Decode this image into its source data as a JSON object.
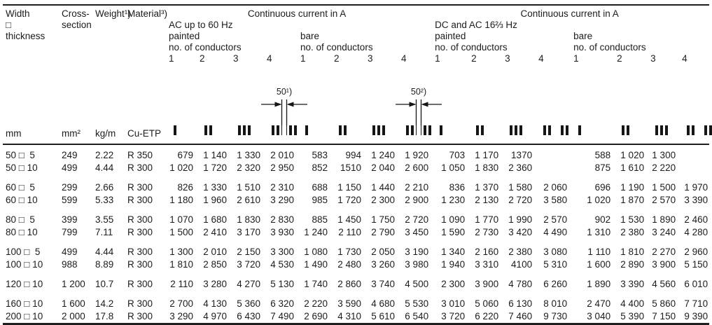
{
  "header": {
    "size": "Width\n□\nthickness",
    "cross_section": "Cross-\nsection",
    "weight": "Weight¹)",
    "material": "Material³)",
    "ac_current_title": "Continuous current in A",
    "dc_current_title": "Continuous current in A",
    "ac_subtitle": "AC up to 60 Hz",
    "dc_subtitle": "DC and AC 16⅔ Hz",
    "painted": "painted",
    "bare": "bare",
    "no_of_conductors": "no. of conductors",
    "conductor_counts": [
      "1",
      "2",
      "3",
      "4"
    ],
    "conductor_icons": [
      "conductor-bars-1",
      "conductor-bars-2",
      "conductor-bars-3",
      "conductor-bars-4"
    ]
  },
  "units_row": {
    "size": "mm",
    "cross_section": "mm²",
    "weight": "kg/m",
    "material": "Cu-ETP"
  },
  "diagram_annotations": {
    "ac_painted_gap": "50¹)",
    "ac_bare_gap": "50²)"
  },
  "column_groups": [
    {
      "id": "ac-painted",
      "annotation": "ac_painted_gap"
    },
    {
      "id": "ac-bare",
      "annotation": "ac_bare_gap"
    },
    {
      "id": "dc-painted"
    },
    {
      "id": "dc-bare"
    }
  ],
  "row_groups": [
    [
      {
        "size": "50 □  5",
        "cross": "249",
        "weight": "2.22",
        "material": "R 350",
        "values": [
          [
            "679",
            "1 140",
            "1 330",
            "2 010"
          ],
          [
            "583",
            "994",
            "1 240",
            "1 920"
          ],
          [
            "703",
            "1 170",
            "1370",
            ""
          ],
          [
            "588",
            "1 020",
            "1 300",
            ""
          ]
        ]
      },
      {
        "size": "50 □ 10",
        "cross": "499",
        "weight": "4.44",
        "material": "R 300",
        "values": [
          [
            "1 020",
            "1 720",
            "2 320",
            "2 950"
          ],
          [
            "852",
            "1510",
            "2 040",
            "2 600"
          ],
          [
            "1 050",
            "1 830",
            "2 360",
            ""
          ],
          [
            "875",
            "1 610",
            "2 220",
            ""
          ]
        ]
      }
    ],
    [
      {
        "size": "60 □  5",
        "cross": "299",
        "weight": "2.66",
        "material": "R 300",
        "values": [
          [
            "826",
            "1 330",
            "1 510",
            "2 310"
          ],
          [
            "688",
            "1 150",
            "1 440",
            "2 210"
          ],
          [
            "836",
            "1 370",
            "1 580",
            "2 060"
          ],
          [
            "696",
            "1 190",
            "1 500",
            "1 970"
          ]
        ]
      },
      {
        "size": "60 □ 10",
        "cross": "599",
        "weight": "5.33",
        "material": "R 300",
        "values": [
          [
            "1 180",
            "1 960",
            "2 610",
            "3 290"
          ],
          [
            "985",
            "1 720",
            "2 300",
            "2 900"
          ],
          [
            "1 230",
            "2 130",
            "2 720",
            "3 580"
          ],
          [
            "1 020",
            "1 870",
            "2 570",
            "3 390"
          ]
        ]
      }
    ],
    [
      {
        "size": "80 □  5",
        "cross": "399",
        "weight": "3.55",
        "material": "R 300",
        "values": [
          [
            "1 070",
            "1 680",
            "1 830",
            "2 830"
          ],
          [
            "885",
            "1 450",
            "1 750",
            "2 720"
          ],
          [
            "1 090",
            "1 770",
            "1 990",
            "2 570"
          ],
          [
            "902",
            "1 530",
            "1 890",
            "2 460"
          ]
        ]
      },
      {
        "size": "80 □ 10",
        "cross": "799",
        "weight": "7.11",
        "material": "R 300",
        "values": [
          [
            "1 500",
            "2 410",
            "3 170",
            "3 930"
          ],
          [
            "1 240",
            "2 110",
            "2 790",
            "3 450"
          ],
          [
            "1 590",
            "2 730",
            "3 420",
            "4 490"
          ],
          [
            "1 310",
            "2 380",
            "3 240",
            "4 280"
          ]
        ]
      }
    ],
    [
      {
        "size": "100 □  5",
        "cross": "499",
        "weight": "4.44",
        "material": "R 300",
        "values": [
          [
            "1 300",
            "2 010",
            "2 150",
            "3 300"
          ],
          [
            "1 080",
            "1 730",
            "2 050",
            "3 190"
          ],
          [
            "1 340",
            "2 160",
            "2 380",
            "3 080"
          ],
          [
            "1 110",
            "1 810",
            "2 270",
            "2 960"
          ]
        ]
      },
      {
        "size": "100 □ 10",
        "cross": "988",
        "weight": "8.89",
        "material": "R 300",
        "values": [
          [
            "1 810",
            "2 850",
            "3 720",
            "4 530"
          ],
          [
            "1 490",
            "2 480",
            "3 260",
            "3 980"
          ],
          [
            "1 940",
            "3 310",
            "4100",
            "5 310"
          ],
          [
            "1 600",
            "2 890",
            "3 900",
            "5 150"
          ]
        ]
      }
    ],
    [
      {
        "size": "120 □ 10",
        "cross": "1 200",
        "weight": "10.7",
        "material": "R 300",
        "values": [
          [
            "2 110",
            "3 280",
            "4 270",
            "5 130"
          ],
          [
            "1 740",
            "2 860",
            "3 740",
            "4 500"
          ],
          [
            "2 300",
            "3 900",
            "4 780",
            "6 260"
          ],
          [
            "1 890",
            "3 390",
            "4 560",
            "6 010"
          ]
        ]
      }
    ],
    [
      {
        "size": "160 □ 10",
        "cross": "1 600",
        "weight": "14.2",
        "material": "R 300",
        "values": [
          [
            "2 700",
            "4 130",
            "5 360",
            "6 320"
          ],
          [
            "2 220",
            "3 590",
            "4 680",
            "5 530"
          ],
          [
            "3 010",
            "5 060",
            "6 130",
            "8 010"
          ],
          [
            "2 470",
            "4 400",
            "5 860",
            "7 710"
          ]
        ]
      },
      {
        "size": "200 □ 10",
        "cross": "2 000",
        "weight": "17.8",
        "material": "R 300",
        "values": [
          [
            "3 290",
            "4 970",
            "6 430",
            "7 490"
          ],
          [
            "2 690",
            "4 310",
            "5 610",
            "6 540"
          ],
          [
            "3 720",
            "6 220",
            "7 460",
            "9 730"
          ],
          [
            "3 040",
            "5 390",
            "7 150",
            "9 390"
          ]
        ]
      }
    ]
  ]
}
